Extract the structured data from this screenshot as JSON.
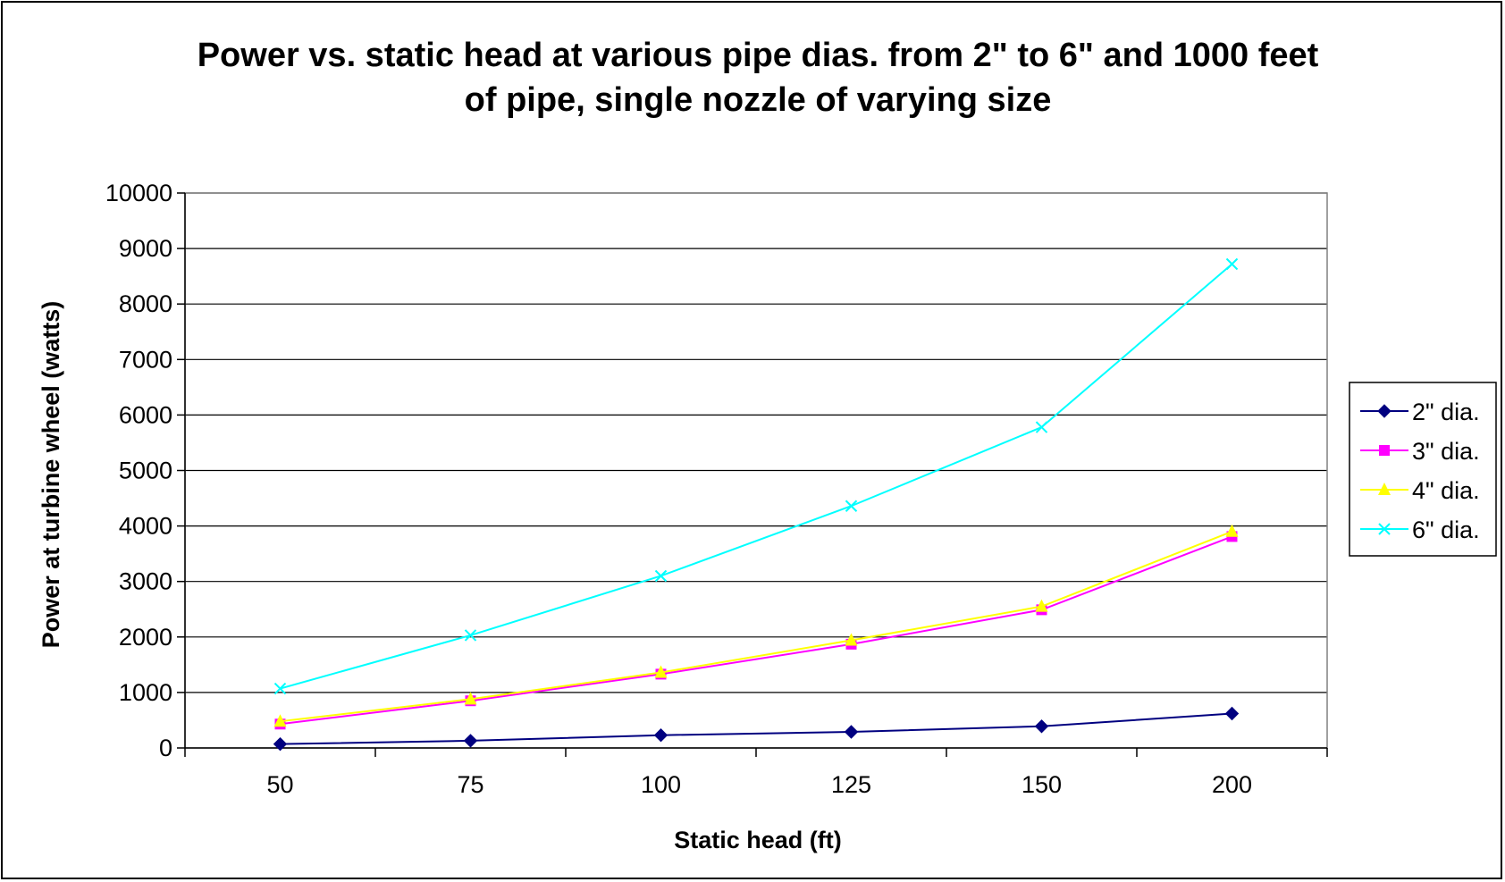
{
  "chart_data": {
    "type": "line",
    "title": "Power vs. static head at various pipe dias. from 2\" to 6\" and 1000 feet of pipe, single nozzle of varying size",
    "title_lines": [
      "Power vs. static head at various pipe dias. from 2\" to 6\" and 1000 feet",
      "of pipe, single nozzle of varying size"
    ],
    "xlabel": "Static head (ft)",
    "ylabel": "Power at turbine wheel (watts)",
    "categories": [
      "50",
      "75",
      "100",
      "125",
      "150",
      "200"
    ],
    "ylim": [
      0,
      10000
    ],
    "yticks": [
      0,
      1000,
      2000,
      3000,
      4000,
      5000,
      6000,
      7000,
      8000,
      9000,
      10000
    ],
    "grid": "horizontal",
    "legend_position": "right",
    "series": [
      {
        "name": "2\" dia.",
        "color": "#000080",
        "marker": "diamond",
        "values": [
          70,
          130,
          230,
          290,
          390,
          620
        ]
      },
      {
        "name": "3\" dia.",
        "color": "#ff00ff",
        "marker": "square",
        "values": [
          430,
          850,
          1330,
          1870,
          2490,
          3810
        ]
      },
      {
        "name": "4\" dia.",
        "color": "#ffff00",
        "marker": "triangle",
        "values": [
          480,
          880,
          1360,
          1940,
          2550,
          3900
        ]
      },
      {
        "name": "6\" dia.",
        "color": "#00ffff",
        "marker": "x",
        "values": [
          1070,
          2030,
          3100,
          4360,
          5780,
          8720
        ]
      }
    ]
  }
}
